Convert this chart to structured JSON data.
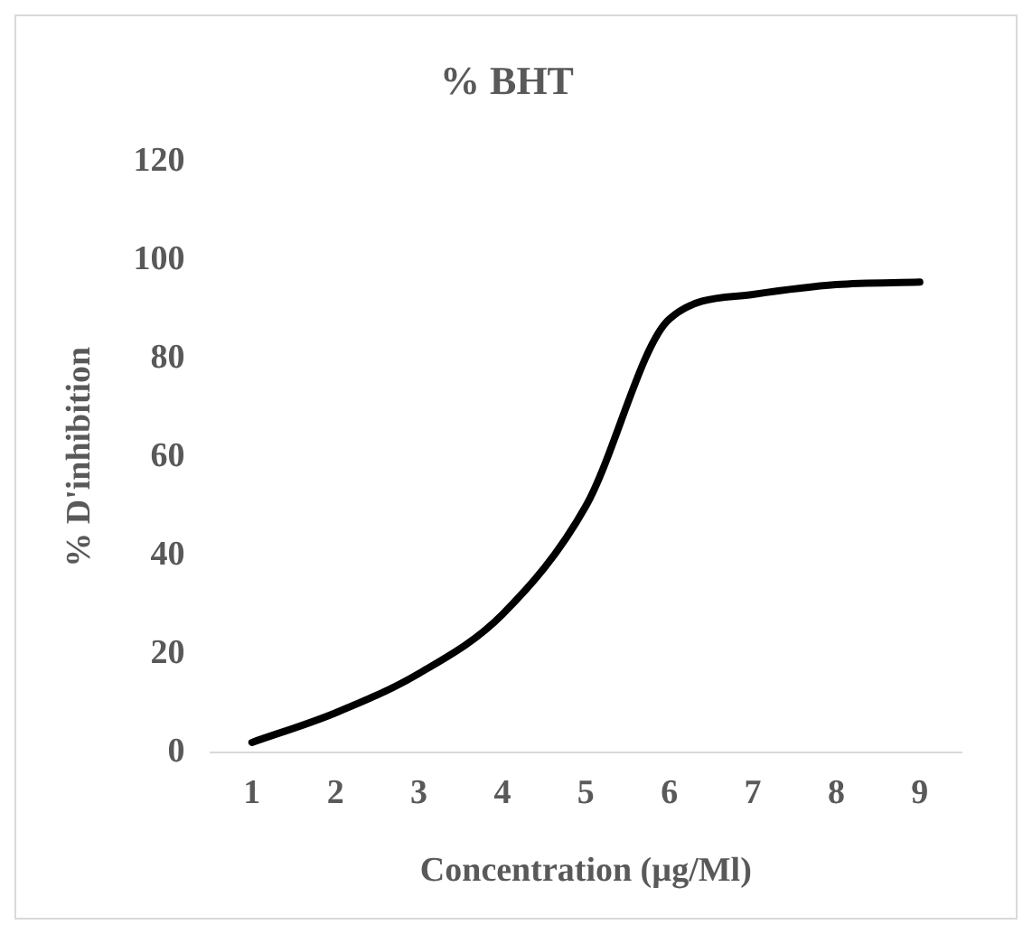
{
  "chart_data": {
    "type": "line",
    "title": "% BHT",
    "xlabel": "Concentration (µg/Ml)",
    "ylabel": "% D'inhibition",
    "categories": [
      "1",
      "2",
      "3",
      "4",
      "5",
      "6",
      "7",
      "8",
      "9"
    ],
    "series": [
      {
        "color": "#000000",
        "values": [
          2,
          8,
          16,
          28,
          50,
          88,
          93,
          95,
          95.5
        ]
      }
    ],
    "ylim": [
      0,
      120
    ],
    "yticks": [
      0,
      20,
      40,
      60,
      80,
      100,
      120
    ],
    "grid": false,
    "legend": false,
    "marker": "none",
    "line_style": "solid"
  }
}
